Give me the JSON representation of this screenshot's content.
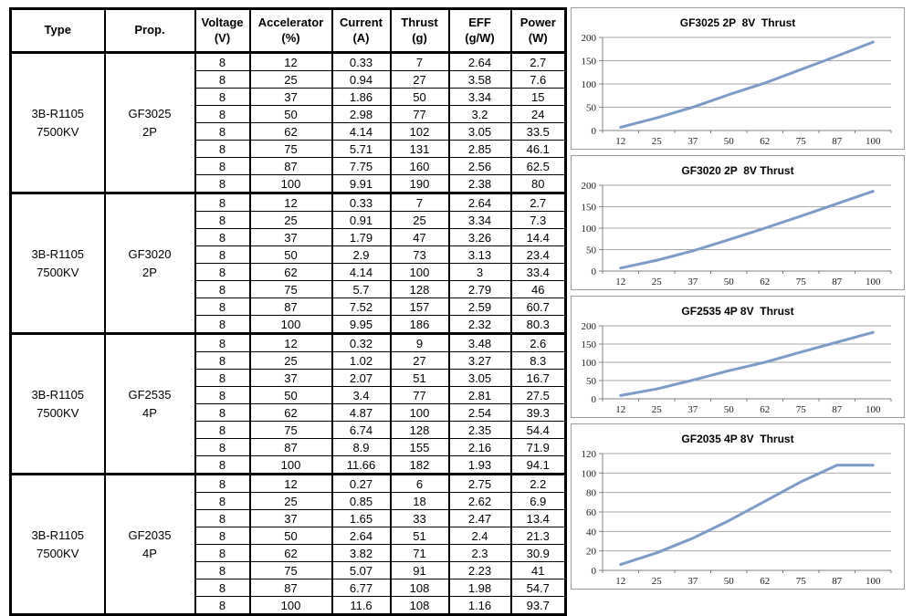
{
  "table": {
    "headers": [
      {
        "key": "type",
        "line1": "Type",
        "line2": ""
      },
      {
        "key": "prop",
        "line1": "Prop.",
        "line2": ""
      },
      {
        "key": "voltage",
        "line1": "Voltage",
        "line2": "(V)"
      },
      {
        "key": "accelerator",
        "line1": "Accelerator",
        "line2": "(%)"
      },
      {
        "key": "current",
        "line1": "Current",
        "line2": "(A)"
      },
      {
        "key": "thrust",
        "line1": "Thrust",
        "line2": "(g)"
      },
      {
        "key": "eff",
        "line1": "EFF",
        "line2": "(g/W)"
      },
      {
        "key": "power",
        "line1": "Power",
        "line2": "(W)"
      }
    ],
    "groups": [
      {
        "type": [
          "3B-R1105",
          "7500KV"
        ],
        "prop": [
          "GF3025",
          "2P"
        ],
        "rows": [
          [
            "8",
            "12",
            "0.33",
            "7",
            "2.64",
            "2.7"
          ],
          [
            "8",
            "25",
            "0.94",
            "27",
            "3.58",
            "7.6"
          ],
          [
            "8",
            "37",
            "1.86",
            "50",
            "3.34",
            "15"
          ],
          [
            "8",
            "50",
            "2.98",
            "77",
            "3.2",
            "24"
          ],
          [
            "8",
            "62",
            "4.14",
            "102",
            "3.05",
            "33.5"
          ],
          [
            "8",
            "75",
            "5.71",
            "131",
            "2.85",
            "46.1"
          ],
          [
            "8",
            "87",
            "7.75",
            "160",
            "2.56",
            "62.5"
          ],
          [
            "8",
            "100",
            "9.91",
            "190",
            "2.38",
            "80"
          ]
        ]
      },
      {
        "type": [
          "3B-R1105",
          "7500KV"
        ],
        "prop": [
          "GF3020",
          "2P"
        ],
        "rows": [
          [
            "8",
            "12",
            "0.33",
            "7",
            "2.64",
            "2.7"
          ],
          [
            "8",
            "25",
            "0.91",
            "25",
            "3.34",
            "7.3"
          ],
          [
            "8",
            "37",
            "1.79",
            "47",
            "3.26",
            "14.4"
          ],
          [
            "8",
            "50",
            "2.9",
            "73",
            "3.13",
            "23.4"
          ],
          [
            "8",
            "62",
            "4.14",
            "100",
            "3",
            "33.4"
          ],
          [
            "8",
            "75",
            "5.7",
            "128",
            "2.79",
            "46"
          ],
          [
            "8",
            "87",
            "7.52",
            "157",
            "2.59",
            "60.7"
          ],
          [
            "8",
            "100",
            "9.95",
            "186",
            "2.32",
            "80.3"
          ]
        ]
      },
      {
        "type": [
          "3B-R1105",
          "7500KV"
        ],
        "prop": [
          "GF2535",
          "4P"
        ],
        "rows": [
          [
            "8",
            "12",
            "0.32",
            "9",
            "3.48",
            "2.6"
          ],
          [
            "8",
            "25",
            "1.02",
            "27",
            "3.27",
            "8.3"
          ],
          [
            "8",
            "37",
            "2.07",
            "51",
            "3.05",
            "16.7"
          ],
          [
            "8",
            "50",
            "3.4",
            "77",
            "2.81",
            "27.5"
          ],
          [
            "8",
            "62",
            "4.87",
            "100",
            "2.54",
            "39.3"
          ],
          [
            "8",
            "75",
            "6.74",
            "128",
            "2.35",
            "54.4"
          ],
          [
            "8",
            "87",
            "8.9",
            "155",
            "2.16",
            "71.9"
          ],
          [
            "8",
            "100",
            "11.66",
            "182",
            "1.93",
            "94.1"
          ]
        ]
      },
      {
        "type": [
          "3B-R1105",
          "7500KV"
        ],
        "prop": [
          "GF2035",
          "4P"
        ],
        "rows": [
          [
            "8",
            "12",
            "0.27",
            "6",
            "2.75",
            "2.2"
          ],
          [
            "8",
            "25",
            "0.85",
            "18",
            "2.62",
            "6.9"
          ],
          [
            "8",
            "37",
            "1.65",
            "33",
            "2.47",
            "13.4"
          ],
          [
            "8",
            "50",
            "2.64",
            "51",
            "2.4",
            "21.3"
          ],
          [
            "8",
            "62",
            "3.82",
            "71",
            "2.3",
            "30.9"
          ],
          [
            "8",
            "75",
            "5.07",
            "91",
            "2.23",
            "41"
          ],
          [
            "8",
            "87",
            "6.77",
            "108",
            "1.98",
            "54.7"
          ],
          [
            "8",
            "100",
            "11.6",
            "108",
            "1.16",
            "93.7"
          ]
        ]
      }
    ]
  },
  "chart_data": [
    {
      "type": "line",
      "title": "GF3025 2P  8V  Thrust",
      "categories": [
        "12",
        "25",
        "37",
        "50",
        "62",
        "75",
        "87",
        "100"
      ],
      "values": [
        7,
        27,
        50,
        77,
        102,
        131,
        160,
        190
      ],
      "xlabel": "",
      "ylabel": "",
      "ylim": [
        0,
        200
      ],
      "yticks": [
        0,
        50,
        100,
        150,
        200
      ],
      "grid": true,
      "legend": false,
      "line_color": "#7d9bc8"
    },
    {
      "type": "line",
      "title": "GF3020 2P  8V Thrust",
      "categories": [
        "12",
        "25",
        "37",
        "50",
        "62",
        "75",
        "87",
        "100"
      ],
      "values": [
        7,
        25,
        47,
        73,
        100,
        128,
        157,
        186
      ],
      "xlabel": "",
      "ylabel": "",
      "ylim": [
        0,
        200
      ],
      "yticks": [
        0,
        50,
        100,
        150,
        200
      ],
      "grid": true,
      "legend": false,
      "line_color": "#7d9bc8"
    },
    {
      "type": "line",
      "title": "GF2535 4P 8V  Thrust",
      "categories": [
        "12",
        "25",
        "37",
        "50",
        "62",
        "75",
        "87",
        "100"
      ],
      "values": [
        9,
        27,
        51,
        77,
        100,
        128,
        155,
        182
      ],
      "xlabel": "",
      "ylabel": "",
      "ylim": [
        0,
        200
      ],
      "yticks": [
        0,
        50,
        100,
        150,
        200
      ],
      "grid": true,
      "legend": false,
      "line_color": "#7d9bc8"
    },
    {
      "type": "line",
      "title": "GF2035 4P 8V  Thrust",
      "categories": [
        "12",
        "25",
        "37",
        "50",
        "62",
        "75",
        "87",
        "100"
      ],
      "values": [
        6,
        18,
        33,
        51,
        71,
        91,
        108,
        108
      ],
      "xlabel": "",
      "ylabel": "",
      "ylim": [
        0,
        120
      ],
      "yticks": [
        0,
        20,
        40,
        60,
        80,
        100,
        120
      ],
      "grid": true,
      "legend": false,
      "line_color": "#7d9bc8"
    }
  ]
}
